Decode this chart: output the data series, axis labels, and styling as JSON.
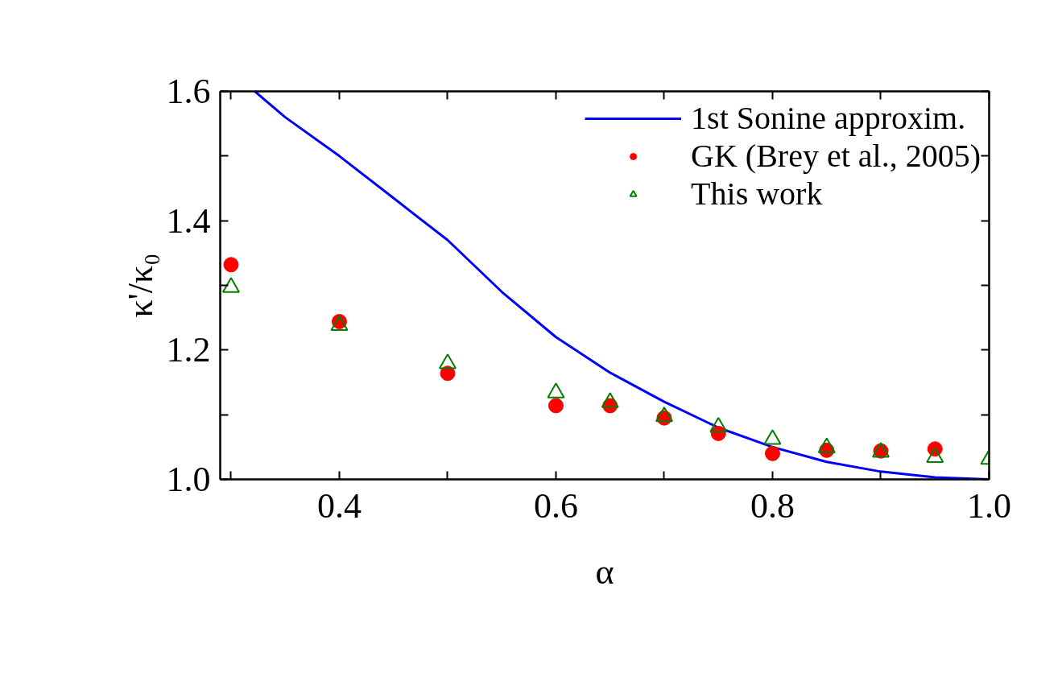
{
  "chart_data": {
    "type": "scatter",
    "xlabel": "α",
    "ylabel": "κ'/κ₀",
    "xlim": [
      0.29,
      1.0
    ],
    "ylim": [
      1.0,
      1.6
    ],
    "xticks": [
      {
        "value": 0.3,
        "label": null
      },
      0.4,
      {
        "value": 0.5,
        "label": null
      },
      0.6,
      {
        "value": 0.7,
        "label": null
      },
      0.8,
      {
        "value": 0.9,
        "label": null
      },
      {
        "value": 1.0,
        "label": "1.0"
      }
    ],
    "yticks": [
      {
        "value": 1.0,
        "label": "1.0"
      },
      {
        "value": 1.1,
        "label": null
      },
      1.2,
      {
        "value": 1.3,
        "label": null
      },
      1.4,
      {
        "value": 1.5,
        "label": null
      },
      1.6
    ],
    "grid": false,
    "legend": "top right",
    "series": [
      {
        "name": "1st Sonine approxim.",
        "type": "line",
        "line_style": "solid",
        "color": "#0000ff",
        "x": [
          0.322,
          0.35,
          0.4,
          0.45,
          0.5,
          0.55,
          0.6,
          0.65,
          0.7,
          0.75,
          0.8,
          0.85,
          0.9,
          0.95,
          1.0
        ],
        "values": [
          1.6,
          1.56,
          1.5,
          1.435,
          1.37,
          1.29,
          1.22,
          1.165,
          1.12,
          1.08,
          1.05,
          1.027,
          1.012,
          1.003,
          1.0
        ]
      },
      {
        "name": "GK (Brey et al., 2005)",
        "marker": "circle",
        "color": "#ff0000",
        "x": [
          0.3,
          0.4,
          0.5,
          0.6,
          0.65,
          0.7,
          0.75,
          0.8,
          0.85,
          0.9,
          0.95
        ],
        "values": [
          1.332,
          1.244,
          1.164,
          1.114,
          1.114,
          1.095,
          1.071,
          1.04,
          1.045,
          1.044,
          1.047
        ]
      },
      {
        "name": "This work",
        "marker": "triangle",
        "color": "#008000",
        "x": [
          0.3,
          0.4,
          0.5,
          0.6,
          0.65,
          0.7,
          0.75,
          0.8,
          0.85,
          0.9,
          0.95,
          1.0
        ],
        "values": [
          1.297,
          1.238,
          1.179,
          1.134,
          1.119,
          1.097,
          1.081,
          1.062,
          1.049,
          1.042,
          1.034,
          1.031
        ]
      }
    ]
  }
}
